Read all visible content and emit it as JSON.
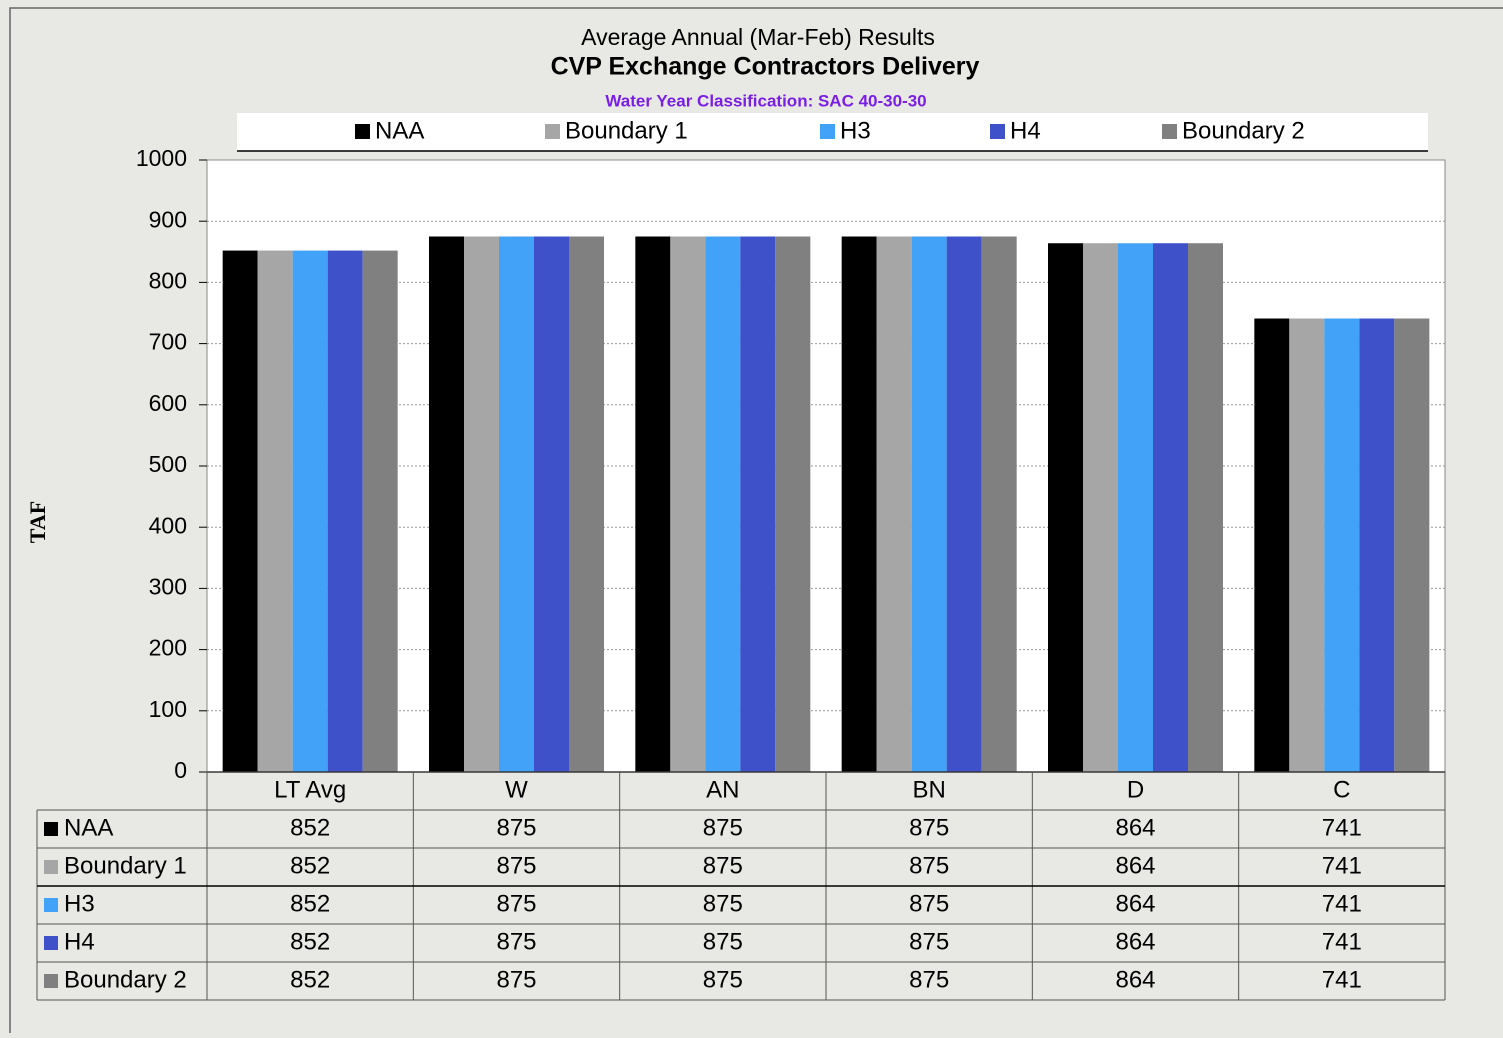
{
  "chart_data": {
    "type": "bar",
    "title": "Average Annual (Mar-Feb) Results",
    "subtitle": "CVP Exchange Contractors Delivery",
    "annotation": "Water Year Classification: SAC 40-30-30",
    "y_label": "TAF",
    "categories": [
      "LT Avg",
      "W",
      "AN",
      "BN",
      "D",
      "C"
    ],
    "series": [
      {
        "name": "NAA",
        "color": "#000000",
        "values": [
          852,
          875,
          875,
          875,
          864,
          741
        ]
      },
      {
        "name": "Boundary 1",
        "color": "#a6a6a6",
        "values": [
          852,
          875,
          875,
          875,
          864,
          741
        ]
      },
      {
        "name": "H3",
        "color": "#42a2f7",
        "values": [
          852,
          875,
          875,
          875,
          864,
          741
        ]
      },
      {
        "name": "H4",
        "color": "#3f51c9",
        "values": [
          852,
          875,
          875,
          875,
          864,
          741
        ]
      },
      {
        "name": "Boundary 2",
        "color": "#808080",
        "values": [
          852,
          875,
          875,
          875,
          864,
          741
        ]
      }
    ],
    "ylim": [
      0,
      1000
    ],
    "yticks": [
      0,
      100,
      200,
      300,
      400,
      500,
      600,
      700,
      800,
      900,
      1000
    ],
    "grid": true,
    "legend": "top"
  }
}
